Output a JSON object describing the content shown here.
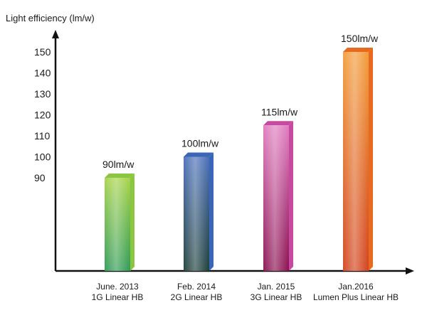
{
  "chart_data": {
    "type": "bar",
    "ylabel": "Light efficiency (lm/w)",
    "yticks": [
      90,
      100,
      110,
      120,
      130,
      140,
      150
    ],
    "categories": [
      {
        "line1": "June. 2013",
        "line2": "1G Linear HB"
      },
      {
        "line1": "Feb. 2014",
        "line2": "2G Linear HB"
      },
      {
        "line1": "Jan. 2015",
        "line2": "3G Linear HB"
      },
      {
        "line1": "Jan.2016",
        "line2": "Lumen Plus Linear HB"
      }
    ],
    "values": [
      90,
      100,
      115,
      150
    ],
    "data_labels": [
      "90lm/w",
      "100lm/w",
      "115lm/w",
      "150lm/w"
    ],
    "bar_colors": [
      {
        "top": "#a6d34a",
        "bottom": "#2e9a55",
        "side": "#8cc640"
      },
      {
        "top": "#4a6fb8",
        "bottom": "#1e3f3a",
        "side": "#3b66b8"
      },
      {
        "top": "#e07cc0",
        "bottom": "#8a1050",
        "side": "#c84aa0"
      },
      {
        "top": "#f39c3a",
        "bottom": "#d2431e",
        "side": "#e86a20"
      }
    ]
  }
}
